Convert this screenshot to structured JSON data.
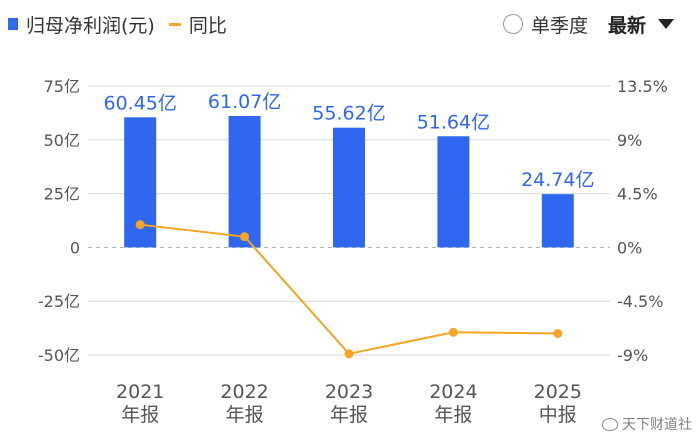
{
  "legend": {
    "bar_label": "归母净利润(元)",
    "line_label": "同比"
  },
  "controls": {
    "radio_label": "单季度",
    "dropdown_label": "最新"
  },
  "watermark": "天下财道社",
  "colors": {
    "bar": "#2f67f0",
    "line": "#f5a524",
    "bar_label": "#2f67f0",
    "axis_text": "#555555",
    "grid": "#d9d9d9"
  },
  "chart_data": {
    "type": "bar",
    "categories": [
      [
        "2021",
        "年报"
      ],
      [
        "2022",
        "年报"
      ],
      [
        "2023",
        "年报"
      ],
      [
        "2024",
        "年报"
      ],
      [
        "2025",
        "中报"
      ]
    ],
    "series": [
      {
        "name": "归母净利润(元)",
        "type": "bar",
        "axis": "left",
        "values": [
          60.45,
          61.07,
          55.62,
          51.64,
          24.74
        ],
        "labels": [
          "60.45亿",
          "61.07亿",
          "55.62亿",
          "51.64亿",
          "24.74亿"
        ]
      },
      {
        "name": "同比",
        "type": "line",
        "axis": "right",
        "values": [
          1.9,
          0.9,
          -8.9,
          -7.1,
          -7.2
        ]
      }
    ],
    "y_left": {
      "ticks": [
        75,
        50,
        25,
        0,
        -25,
        -50
      ],
      "tick_labels": [
        "75亿",
        "50亿",
        "25亿",
        "0",
        "-25亿",
        "-50亿"
      ],
      "ylim": [
        -50,
        75
      ]
    },
    "y_right": {
      "ticks": [
        13.5,
        9,
        4.5,
        0,
        -4.5,
        -9
      ],
      "tick_labels": [
        "13.5%",
        "9%",
        "4.5%",
        "0%",
        "-4.5%",
        "-9%"
      ],
      "ylim": [
        -9,
        13.5
      ]
    },
    "grid": true,
    "legend_position": "top-left"
  }
}
